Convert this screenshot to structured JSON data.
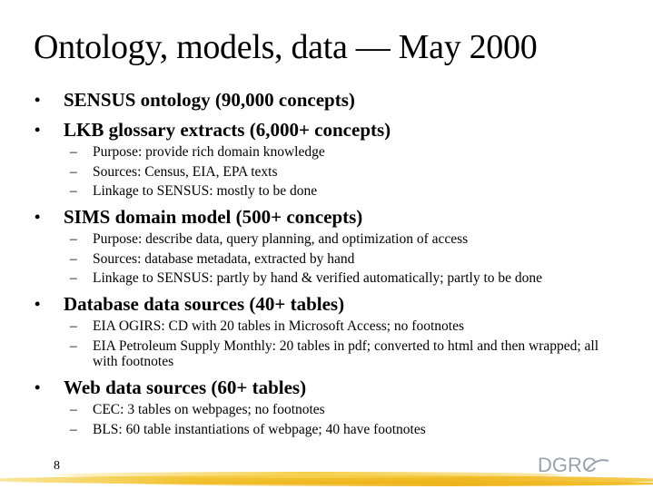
{
  "title": "Ontology, models, data — May 2000",
  "bullet_symbol": "•",
  "sub_symbol": "–",
  "bullets": [
    {
      "text": "SENSUS ontology (90,000 concepts)",
      "subs": []
    },
    {
      "text": "LKB glossary extracts (6,000+ concepts)",
      "subs": [
        "Purpose: provide rich domain knowledge",
        "Sources: Census, EIA, EPA texts",
        "Linkage to SENSUS: mostly to be done"
      ]
    },
    {
      "text": "SIMS domain model (500+ concepts)",
      "subs": [
        "Purpose: describe data, query planning, and optimization of access",
        "Sources: database metadata, extracted by hand",
        "Linkage to SENSUS: partly by hand & verified automatically; partly to be done"
      ]
    },
    {
      "text": "Database data sources (40+ tables)",
      "subs": [
        "EIA OGIRS: CD with 20 tables in Microsoft Access; no footnotes",
        "EIA Petroleum Supply Monthly: 20 tables in pdf; converted to html and then wrapped; all with footnotes"
      ]
    },
    {
      "text": "Web data sources (60+ tables)",
      "subs": [
        "CEC: 3 tables on webpages; no footnotes",
        "BLS: 60 table instantiations of webpage; 40 have footnotes"
      ]
    }
  ],
  "page_number": "8",
  "logo": "DGRC",
  "colors": {
    "band": "#f2c230",
    "band_light": "#f8dc6a",
    "logo": "#9aa3ab"
  }
}
